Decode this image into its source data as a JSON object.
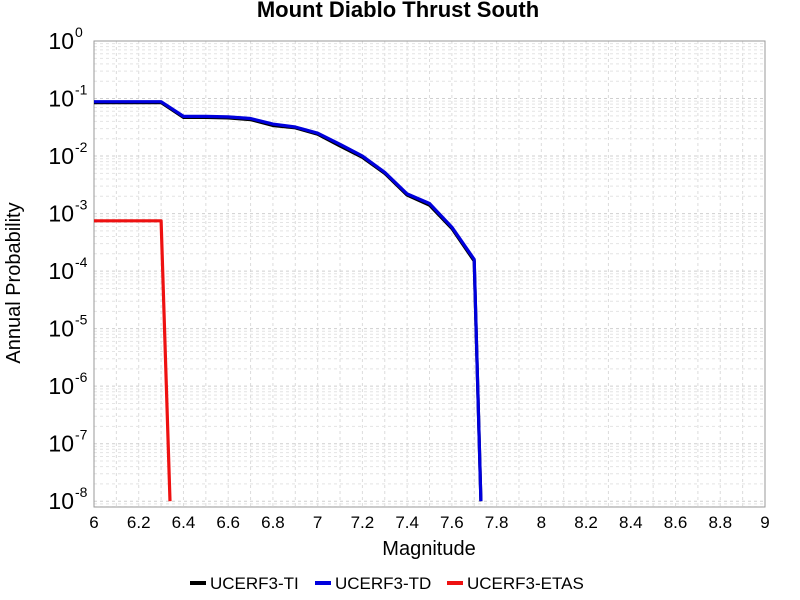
{
  "chart_data": {
    "type": "line",
    "title": "Mount Diablo Thrust South",
    "xlabel": "Magnitude",
    "ylabel": "Annual Probability",
    "xlim": [
      6,
      9
    ],
    "ylim_log10": [
      -8.1,
      0
    ],
    "y_scale": "log",
    "grid": true,
    "legend_position": "bottom-center",
    "x_ticks": [
      "6",
      "6.2",
      "6.4",
      "6.6",
      "6.8",
      "7",
      "7.2",
      "7.4",
      "7.6",
      "7.8",
      "8",
      "8.2",
      "8.4",
      "8.6",
      "8.8",
      "9"
    ],
    "y_ticks": [
      {
        "base": "10",
        "exp": "0"
      },
      {
        "base": "10",
        "exp": "-1"
      },
      {
        "base": "10",
        "exp": "-2"
      },
      {
        "base": "10",
        "exp": "-3"
      },
      {
        "base": "10",
        "exp": "-4"
      },
      {
        "base": "10",
        "exp": "-5"
      },
      {
        "base": "10",
        "exp": "-6"
      },
      {
        "base": "10",
        "exp": "-7"
      },
      {
        "base": "10",
        "exp": "-8"
      }
    ],
    "series": [
      {
        "name": "UCERF3-TI",
        "color": "#000000",
        "x": [
          6.0,
          6.3,
          6.4,
          6.5,
          6.6,
          6.7,
          6.8,
          6.9,
          7.0,
          7.1,
          7.2,
          7.3,
          7.4,
          7.5,
          7.6,
          7.7,
          7.73
        ],
        "y": [
          0.085,
          0.085,
          0.047,
          0.047,
          0.046,
          0.043,
          0.034,
          0.031,
          0.024,
          0.015,
          0.0095,
          0.005,
          0.0021,
          0.0014,
          0.00055,
          0.00015,
          1e-08
        ]
      },
      {
        "name": "UCERF3-TD",
        "color": "#0000dd",
        "x": [
          6.0,
          6.3,
          6.4,
          6.5,
          6.6,
          6.7,
          6.8,
          6.9,
          7.0,
          7.1,
          7.2,
          7.3,
          7.4,
          7.5,
          7.6,
          7.7,
          7.73
        ],
        "y": [
          0.088,
          0.088,
          0.049,
          0.049,
          0.048,
          0.045,
          0.036,
          0.032,
          0.025,
          0.016,
          0.01,
          0.0052,
          0.0022,
          0.0015,
          0.00058,
          0.00016,
          1e-08
        ]
      },
      {
        "name": "UCERF3-ETAS",
        "color": "#ee1111",
        "x": [
          6.0,
          6.3,
          6.34
        ],
        "y": [
          0.00075,
          0.00075,
          1e-08
        ]
      }
    ]
  }
}
